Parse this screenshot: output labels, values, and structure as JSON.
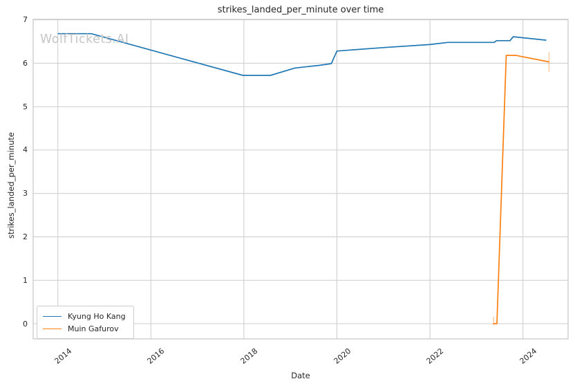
{
  "page": {
    "watermark": "WolfTickets.AI"
  },
  "chart_data": {
    "type": "line",
    "title": "strikes_landed_per_minute over time",
    "xlabel": "Date",
    "ylabel": "strikes_landed_per_minute",
    "grid": true,
    "legend_position": "lower left",
    "xlim": [
      2013.47,
      2024.97
    ],
    "ylim": [
      -0.35,
      7.01
    ],
    "x_ticks": [
      2014,
      2016,
      2018,
      2020,
      2022,
      2024
    ],
    "y_ticks": [
      0,
      1,
      2,
      3,
      4,
      5,
      6,
      7
    ],
    "colors": {
      "grid": "#cccccc",
      "spine": "#c6c6c6",
      "text": "#262626"
    },
    "series": [
      {
        "name": "Kyung Ho Kang",
        "color": "#1f77b4",
        "x": [
          2014.0,
          2014.72,
          2017.98,
          2018.57,
          2019.1,
          2019.62,
          2019.88,
          2020.0,
          2021.0,
          2022.0,
          2022.38,
          2023.38,
          2023.43,
          2023.72,
          2023.79,
          2024.5
        ],
        "y": [
          6.68,
          6.68,
          5.72,
          5.72,
          5.89,
          5.95,
          5.99,
          6.28,
          6.36,
          6.43,
          6.48,
          6.48,
          6.52,
          6.52,
          6.61,
          6.53
        ]
      },
      {
        "name": "Muin Gafurov",
        "color": "#ff7f0e",
        "x": [
          2023.36,
          2023.44,
          2023.64,
          2023.85,
          2024.56
        ],
        "y": [
          0.0,
          0.0,
          6.18,
          6.18,
          6.03
        ],
        "error_ticks": [
          {
            "x": 2023.37,
            "y_from": -0.03,
            "y_to": 0.16
          },
          {
            "x": 2024.56,
            "y_from": 5.8,
            "y_to": 6.25
          }
        ]
      }
    ]
  }
}
